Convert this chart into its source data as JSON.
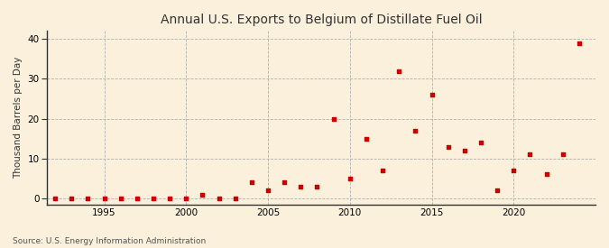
{
  "title": "Annual U.S. Exports to Belgium of Distillate Fuel Oil",
  "ylabel": "Thousand Barrels per Day",
  "source": "Source: U.S. Energy Information Administration",
  "background_color": "#faf0dc",
  "plot_background_color": "#faf0dc",
  "dot_color": "#cc0000",
  "xlim": [
    1991.5,
    2025
  ],
  "ylim": [
    -1.5,
    42
  ],
  "yticks": [
    0,
    10,
    20,
    30,
    40
  ],
  "xticks": [
    1995,
    2000,
    2005,
    2010,
    2015,
    2020
  ],
  "data": {
    "years": [
      1992,
      1993,
      1994,
      1995,
      1996,
      1997,
      1998,
      1999,
      2000,
      2001,
      2002,
      2003,
      2004,
      2005,
      2006,
      2007,
      2008,
      2009,
      2010,
      2011,
      2012,
      2013,
      2014,
      2015,
      2016,
      2017,
      2018,
      2019,
      2020,
      2021,
      2022,
      2023,
      2024
    ],
    "values": [
      0,
      0,
      0,
      0,
      0,
      0,
      0,
      0,
      0,
      1,
      0,
      0,
      4,
      2,
      4,
      3,
      3,
      20,
      5,
      15,
      7,
      32,
      17,
      26,
      13,
      12,
      14,
      2,
      7,
      11,
      6,
      11,
      39
    ]
  }
}
